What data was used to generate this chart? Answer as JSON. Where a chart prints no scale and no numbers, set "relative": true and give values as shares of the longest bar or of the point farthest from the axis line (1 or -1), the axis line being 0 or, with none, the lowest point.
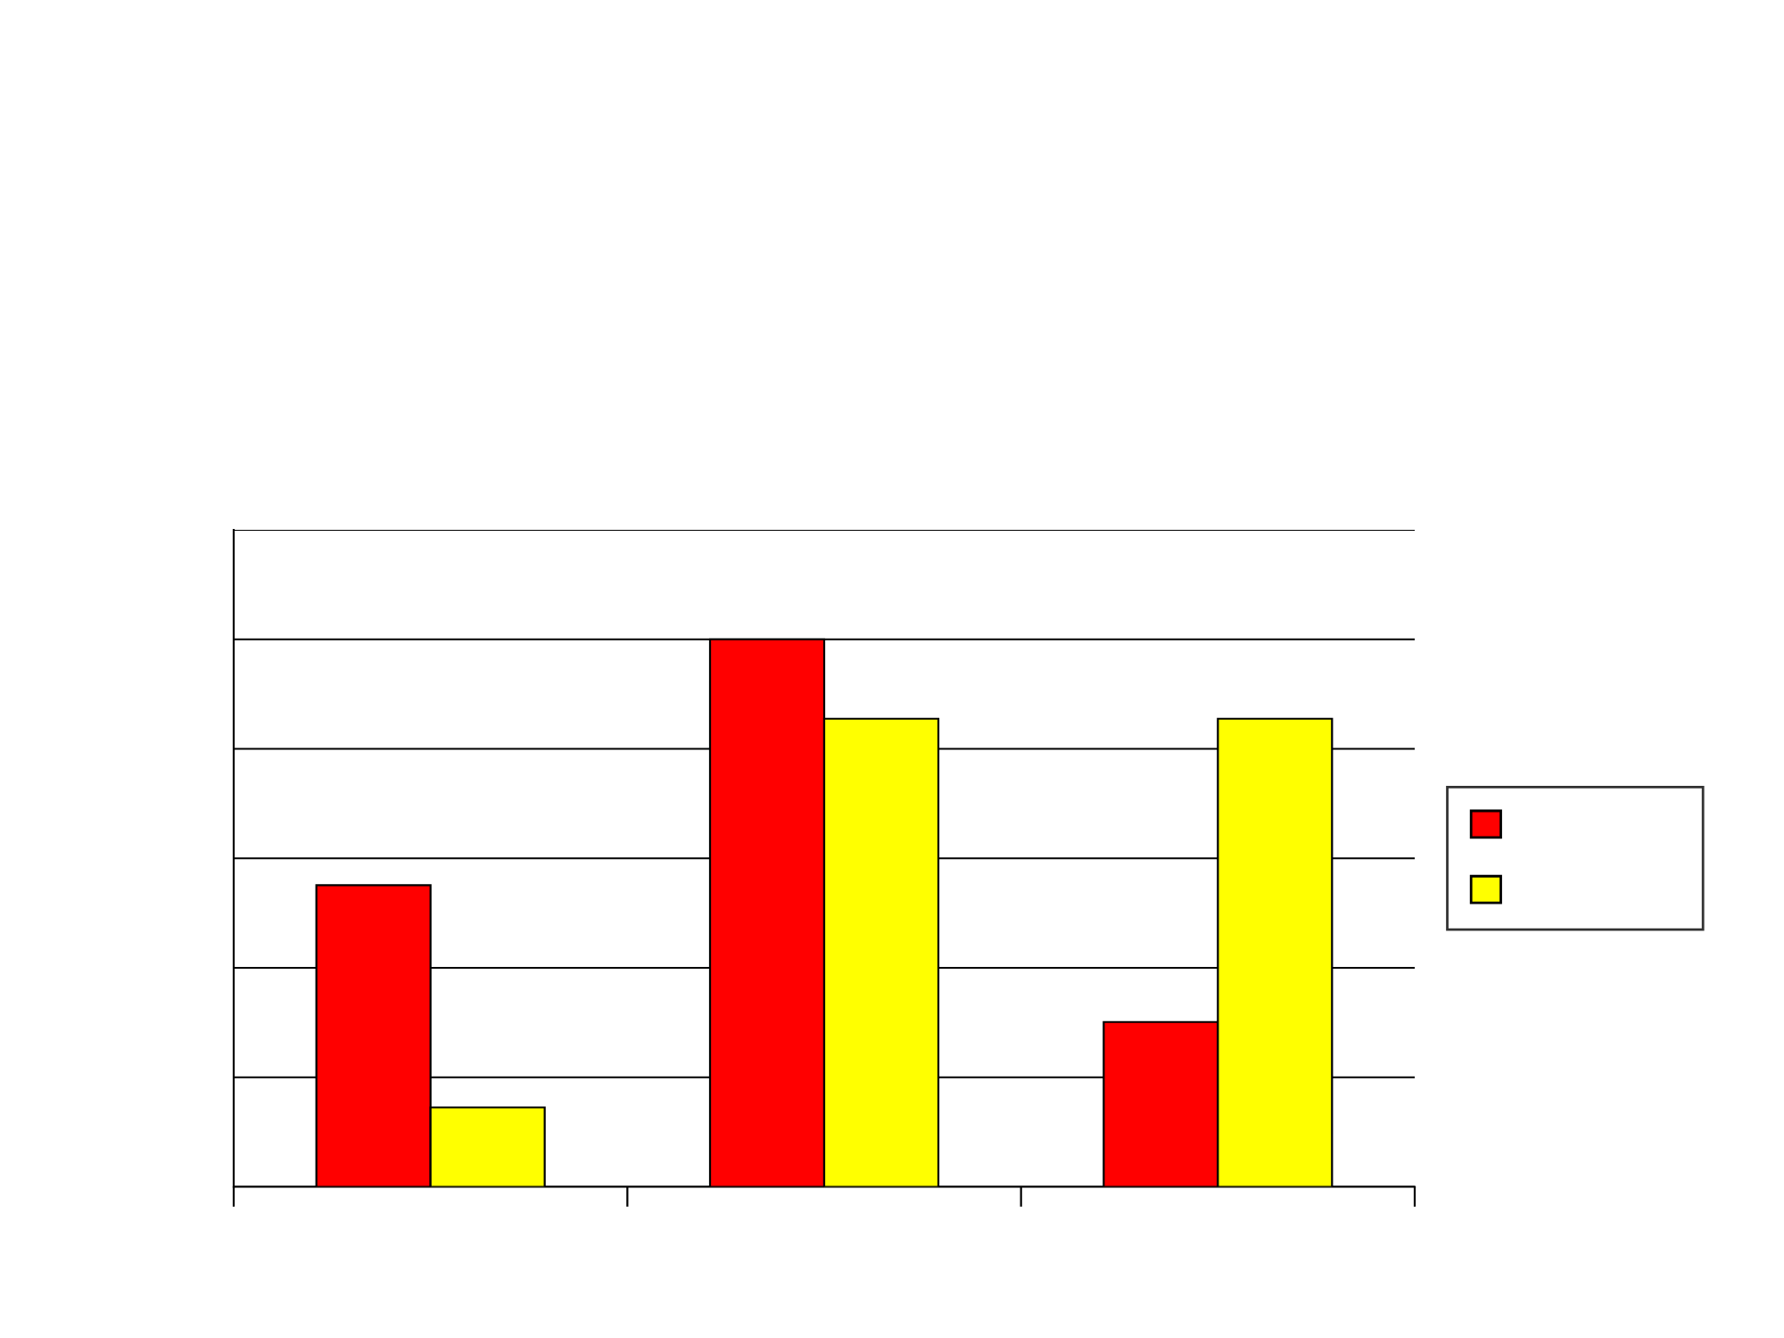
{
  "chart_data": {
    "type": "bar",
    "relative": true,
    "categories": [
      null,
      null,
      null
    ],
    "series": [
      {
        "color": "#ff0000",
        "values": [
          0.551,
          1.0,
          0.301
        ]
      },
      {
        "color": "#ffff00",
        "values": [
          0.145,
          0.855,
          0.855
        ]
      }
    ],
    "grid": "y"
  }
}
